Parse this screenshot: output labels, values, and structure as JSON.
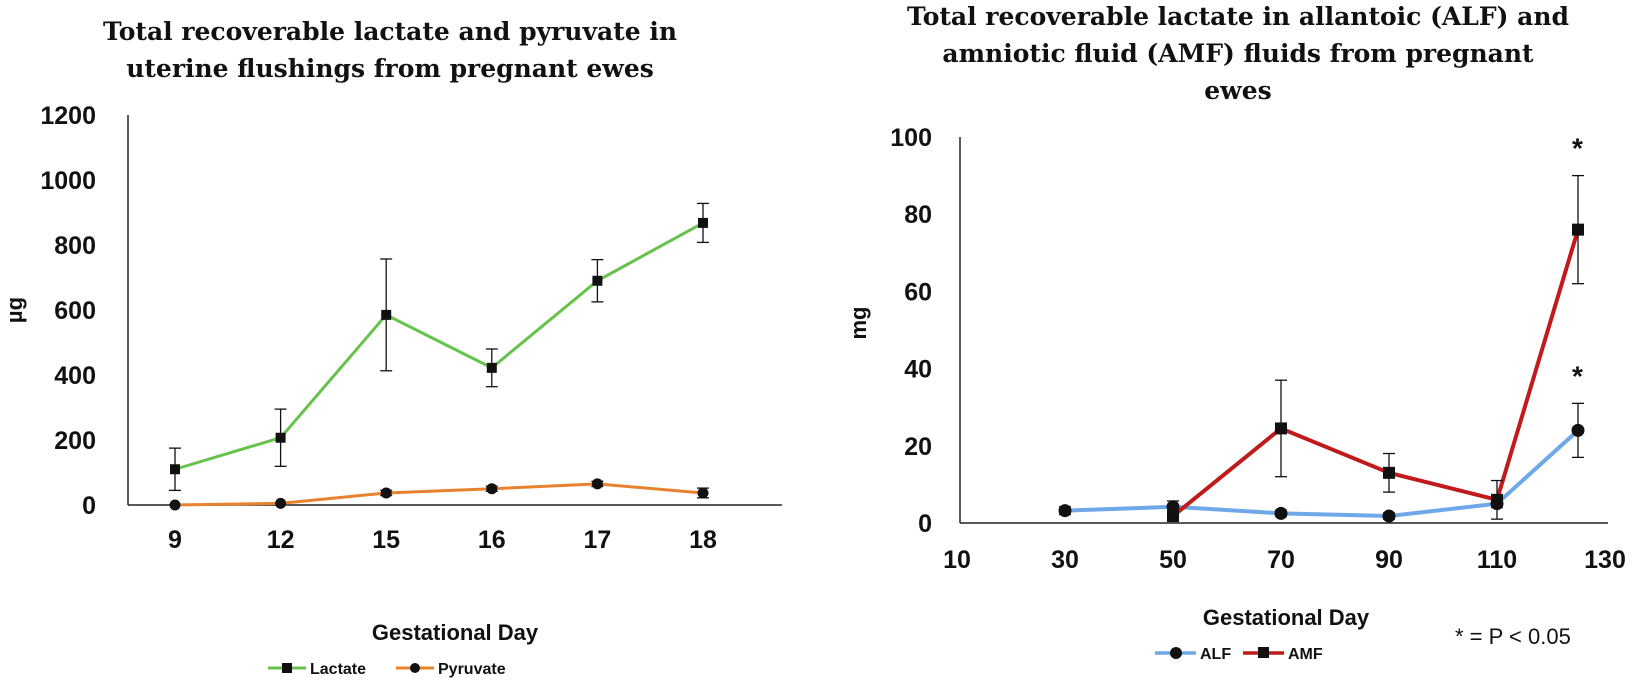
{
  "chart_data": [
    {
      "type": "line",
      "title_lines": [
        "Total recoverable lactate and pyruvate in",
        "uterine flushings from pregnant ewes"
      ],
      "xlabel": "Gestational  Day",
      "ylabel": "µg",
      "categories": [
        "9",
        "12",
        "15",
        "16",
        "17",
        "18"
      ],
      "ylim": [
        0,
        1200
      ],
      "yticks": [
        "0",
        "200",
        "400",
        "600",
        "800",
        "1000",
        "1200"
      ],
      "legend_position": "bottom",
      "series": [
        {
          "name": "Lactate",
          "color": "#66c24a",
          "marker": "square",
          "values": [
            110,
            207,
            585,
            422,
            690,
            868
          ],
          "errors": [
            65,
            88,
            172,
            58,
            65,
            60
          ]
        },
        {
          "name": "Pyruvate",
          "color": "#e8822e",
          "marker": "circle",
          "values": [
            0,
            5,
            37,
            50,
            65,
            37
          ],
          "errors": [
            0,
            0,
            8,
            8,
            8,
            15
          ]
        }
      ]
    },
    {
      "type": "line",
      "title_lines": [
        "Total recoverable lactate in allantoic (ALF) and",
        "amniotic fluid (AMF) fluids from pregnant",
        "ewes"
      ],
      "xlabel": "Gestational  Day",
      "ylabel": "mg",
      "xlim": [
        10,
        130
      ],
      "xticks": [
        "10",
        "30",
        "50",
        "70",
        "90",
        "110",
        "130"
      ],
      "ylim": [
        0,
        100
      ],
      "yticks": [
        "0",
        "20",
        "40",
        "60",
        "80",
        "100"
      ],
      "legend_position": "bottom",
      "note": "* = P < 0.05",
      "significance_marker": "*",
      "series": [
        {
          "name": "ALF",
          "color": "#6fa8e8",
          "marker": "circle",
          "x": [
            30,
            50,
            70,
            90,
            110,
            125
          ],
          "values": [
            3.2,
            4.2,
            2.5,
            1.8,
            5,
            24
          ],
          "errors": [
            1,
            1.5,
            0.8,
            0.8,
            1,
            7
          ],
          "significant": [
            false,
            false,
            false,
            false,
            false,
            true
          ]
        },
        {
          "name": "AMF",
          "color": "#c01a1a",
          "marker": "square",
          "x": [
            50,
            70,
            90,
            110,
            125
          ],
          "values": [
            1.8,
            24.5,
            13,
            6,
            76
          ],
          "errors": [
            0.5,
            12.5,
            5,
            5,
            14
          ],
          "significant": [
            false,
            false,
            false,
            false,
            true
          ]
        }
      ]
    }
  ]
}
